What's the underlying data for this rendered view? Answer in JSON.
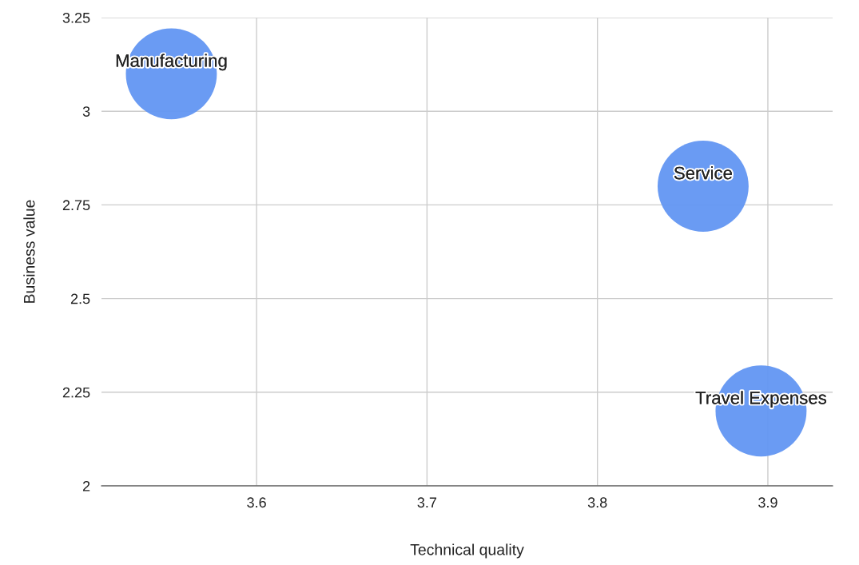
{
  "chart_data": {
    "type": "bubble",
    "xlabel": "Technical quality",
    "ylabel": "Business value",
    "series": [
      {
        "name": "Manufacturing",
        "color": "#6296f2",
        "x": [
          3.55
        ],
        "values": [
          3.1
        ],
        "sizes": [
          1
        ]
      },
      {
        "name": "Service",
        "color": "#6296f2",
        "x": [
          3.862
        ],
        "values": [
          2.8
        ],
        "sizes": [
          1
        ]
      },
      {
        "name": "Travel Expenses",
        "color": "#6296f2",
        "x": [
          3.896
        ],
        "values": [
          2.2
        ],
        "sizes": [
          1
        ]
      }
    ],
    "xlim": [
      3.509,
      3.938
    ],
    "xticks": [
      3.6,
      3.7,
      3.8,
      3.9
    ],
    "ylim": [
      2,
      3.25
    ],
    "yticks": [
      2,
      2.25,
      2.5,
      2.75,
      3,
      3.25
    ],
    "grid": true,
    "legend": false
  }
}
